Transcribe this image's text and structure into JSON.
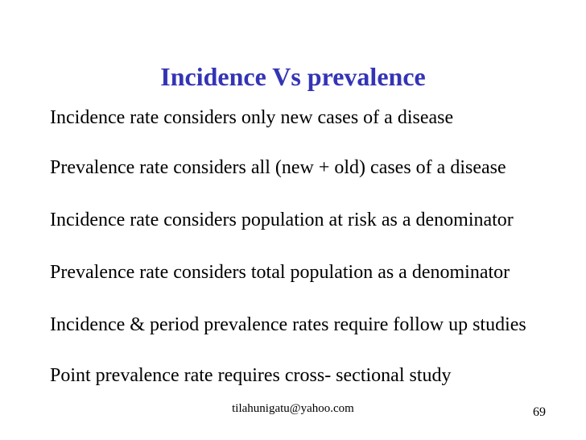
{
  "slide": {
    "title": {
      "text": "Incidence Vs prevalence",
      "color": "#3434b6"
    },
    "bullets": [
      "Incidence rate considers only new cases of a disease",
      "Prevalence rate considers all (new + old) cases of a disease",
      "Incidence rate considers population at risk as a denominator",
      "Prevalence rate considers total population as a denominator",
      "Incidence & period prevalence rates require follow up studies",
      "Point prevalence rate requires cross- sectional study"
    ],
    "footer": {
      "email": "tilahunigatu@yahoo.com",
      "page_number": "69"
    },
    "text_color": "#000000",
    "background_color": "#ffffff"
  }
}
